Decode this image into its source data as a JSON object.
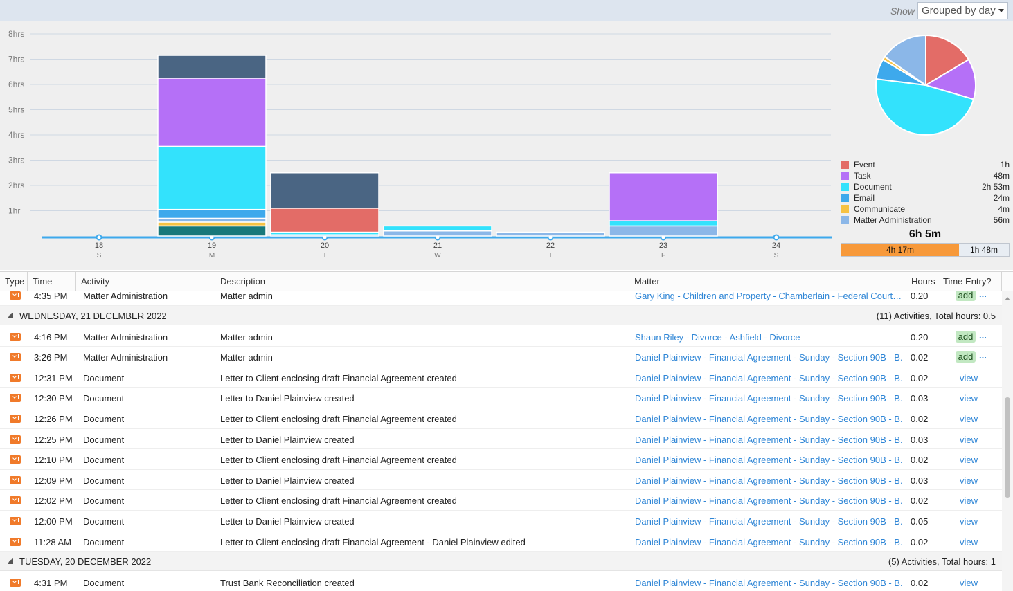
{
  "toolbar": {
    "show_label": "Show",
    "group_by_value": "Grouped by day"
  },
  "colors": {
    "event": "#e36c67",
    "task": "#b570f7",
    "document": "#33e2fc",
    "email": "#3ea9ec",
    "communicate": "#f6c244",
    "matter_administration": "#8bb7e8",
    "dark_slate": "#4a6583",
    "dark_teal": "#18787a",
    "link": "#2f86d6",
    "billed_orange": "#f7993a"
  },
  "chart_data": {
    "type": "bar",
    "stacked": true,
    "y_ticks": [
      "8hrs",
      "7hrs",
      "6hrs",
      "5hrs",
      "4hrs",
      "3hrs",
      "2hrs",
      "1hr"
    ],
    "ylim": [
      0,
      8
    ],
    "categories": [
      "18",
      "19",
      "20",
      "21",
      "22",
      "23",
      "24"
    ],
    "day_letters": [
      "S",
      "M",
      "T",
      "W",
      "T",
      "F",
      "S"
    ],
    "grid": true,
    "series": [
      {
        "key": "dark_teal",
        "values": [
          0,
          0.4,
          0,
          0,
          0,
          0,
          0
        ]
      },
      {
        "key": "communicate",
        "values": [
          0,
          0.15,
          0,
          0,
          0,
          0,
          0
        ]
      },
      {
        "key": "matter_administration",
        "values": [
          0,
          0.15,
          0.05,
          0.2,
          0.15,
          0.4,
          0
        ]
      },
      {
        "key": "email",
        "values": [
          0,
          0.35,
          0,
          0,
          0,
          0,
          0
        ]
      },
      {
        "key": "document",
        "values": [
          0,
          2.5,
          0.1,
          0.2,
          0,
          0.2,
          0
        ]
      },
      {
        "key": "event",
        "values": [
          0,
          0,
          0.95,
          0,
          0,
          0,
          0
        ]
      },
      {
        "key": "task",
        "values": [
          0,
          2.7,
          0,
          0,
          0,
          1.9,
          0
        ]
      },
      {
        "key": "dark_slate",
        "values": [
          0,
          0.9,
          1.4,
          0,
          0,
          0,
          0
        ]
      }
    ]
  },
  "pie_data": {
    "type": "pie",
    "slices": [
      {
        "name": "Event",
        "value": 60,
        "key": "event"
      },
      {
        "name": "Task",
        "value": 48,
        "key": "task"
      },
      {
        "name": "Document",
        "value": 173,
        "key": "document"
      },
      {
        "name": "Email",
        "value": 24,
        "key": "email"
      },
      {
        "name": "Communicate",
        "value": 4,
        "key": "communicate"
      },
      {
        "name": "Matter Administration",
        "value": 56,
        "key": "matter_administration"
      }
    ]
  },
  "legend": [
    {
      "name": "Event",
      "value": "1h",
      "key": "event"
    },
    {
      "name": "Task",
      "value": "48m",
      "key": "task"
    },
    {
      "name": "Document",
      "value": "2h 53m",
      "key": "document"
    },
    {
      "name": "Email",
      "value": "24m",
      "key": "email"
    },
    {
      "name": "Communicate",
      "value": "4m",
      "key": "communicate"
    },
    {
      "name": "Matter Administration",
      "value": "56m",
      "key": "matter_administration"
    }
  ],
  "total": "6h 5m",
  "split": {
    "billed": "4h 17m",
    "billed_fraction": 0.704,
    "unbilled": "1h 48m"
  },
  "columns": [
    "Type",
    "Time",
    "Activity",
    "Description",
    "Matter",
    "Hours",
    "Time Entry?"
  ],
  "groups": [
    {
      "label": "",
      "summary": "",
      "rows": [
        {
          "time": "4:35 PM",
          "activity": "Matter Administration",
          "description": "Matter admin",
          "matter": "Gary King - Children and Property - Chamberlain - Federal Court…",
          "hours": "0.20",
          "entry": "add",
          "more": "..."
        }
      ]
    },
    {
      "label": "WEDNESDAY, 21 DECEMBER 2022",
      "summary": "(11) Activities, Total hours: 0.5",
      "rows": [
        {
          "time": "4:16 PM",
          "activity": "Matter Administration",
          "description": "Matter admin",
          "matter": "Shaun Riley - Divorce - Ashfield - Divorce",
          "hours": "0.20",
          "entry": "add",
          "more": "..."
        },
        {
          "time": "3:26 PM",
          "activity": "Matter Administration",
          "description": "Matter admin",
          "matter": "Daniel Plainview - Financial Agreement - Sunday - Section 90B - B...",
          "hours": "0.02",
          "entry": "add",
          "more": "..."
        },
        {
          "time": "12:31 PM",
          "activity": "Document",
          "description": "Letter to Client enclosing draft Financial Agreement created",
          "matter": "Daniel Plainview - Financial Agreement - Sunday - Section 90B - B...",
          "hours": "0.02",
          "entry": "view"
        },
        {
          "time": "12:30 PM",
          "activity": "Document",
          "description": "Letter to Daniel Plainview created",
          "matter": "Daniel Plainview - Financial Agreement - Sunday - Section 90B - B...",
          "hours": "0.03",
          "entry": "view"
        },
        {
          "time": "12:26 PM",
          "activity": "Document",
          "description": "Letter to Client enclosing draft Financial Agreement created",
          "matter": "Daniel Plainview - Financial Agreement - Sunday - Section 90B - B...",
          "hours": "0.02",
          "entry": "view"
        },
        {
          "time": "12:25 PM",
          "activity": "Document",
          "description": "Letter to Daniel Plainview created",
          "matter": "Daniel Plainview - Financial Agreement - Sunday - Section 90B - B...",
          "hours": "0.03",
          "entry": "view"
        },
        {
          "time": "12:10 PM",
          "activity": "Document",
          "description": "Letter to Client enclosing draft Financial Agreement created",
          "matter": "Daniel Plainview - Financial Agreement - Sunday - Section 90B - B...",
          "hours": "0.02",
          "entry": "view"
        },
        {
          "time": "12:09 PM",
          "activity": "Document",
          "description": "Letter to Daniel Plainview created",
          "matter": "Daniel Plainview - Financial Agreement - Sunday - Section 90B - B...",
          "hours": "0.03",
          "entry": "view"
        },
        {
          "time": "12:02 PM",
          "activity": "Document",
          "description": "Letter to Client enclosing draft Financial Agreement created",
          "matter": "Daniel Plainview - Financial Agreement - Sunday - Section 90B - B...",
          "hours": "0.02",
          "entry": "view"
        },
        {
          "time": "12:00 PM",
          "activity": "Document",
          "description": "Letter to Daniel Plainview created",
          "matter": "Daniel Plainview - Financial Agreement - Sunday - Section 90B - B...",
          "hours": "0.05",
          "entry": "view"
        },
        {
          "time": "11:28 AM",
          "activity": "Document",
          "description": "Letter to Client enclosing draft Financial Agreement - Daniel Plainview edited",
          "matter": "Daniel Plainview - Financial Agreement - Sunday - Section 90B - B...",
          "hours": "0.02",
          "entry": "view"
        }
      ]
    },
    {
      "label": "TUESDAY, 20 DECEMBER 2022",
      "summary": "(5) Activities, Total hours: 1",
      "rows": [
        {
          "time": "4:31 PM",
          "activity": "Document",
          "description": "Trust Bank Reconciliation created",
          "matter": "Daniel Plainview - Financial Agreement - Sunday - Section 90B - B...",
          "hours": "0.02",
          "entry": "view"
        }
      ]
    }
  ]
}
